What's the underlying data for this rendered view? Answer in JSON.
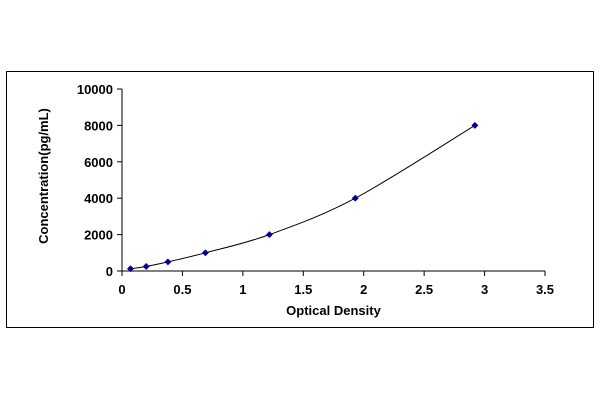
{
  "chart_data": {
    "type": "scatter",
    "title": "",
    "xlabel": "Optical Density",
    "ylabel": "Concentration(pg/mL)",
    "xlim": [
      0,
      3.5
    ],
    "ylim": [
      0,
      10000
    ],
    "x_ticks": [
      "0",
      "0.5",
      "1",
      "1.5",
      "2",
      "2.5",
      "3",
      "3.5"
    ],
    "y_ticks": [
      "0",
      "2000",
      "4000",
      "6000",
      "8000",
      "10000"
    ],
    "grid": false,
    "legend": "none",
    "series": [
      {
        "x": [
          0.07,
          0.2,
          0.38,
          0.69,
          1.22,
          1.93,
          2.92
        ],
        "y": [
          125,
          250,
          500,
          1000,
          2000,
          4000,
          8000
        ],
        "marker": "diamond",
        "line": "smooth",
        "color": "#00008B"
      }
    ]
  }
}
